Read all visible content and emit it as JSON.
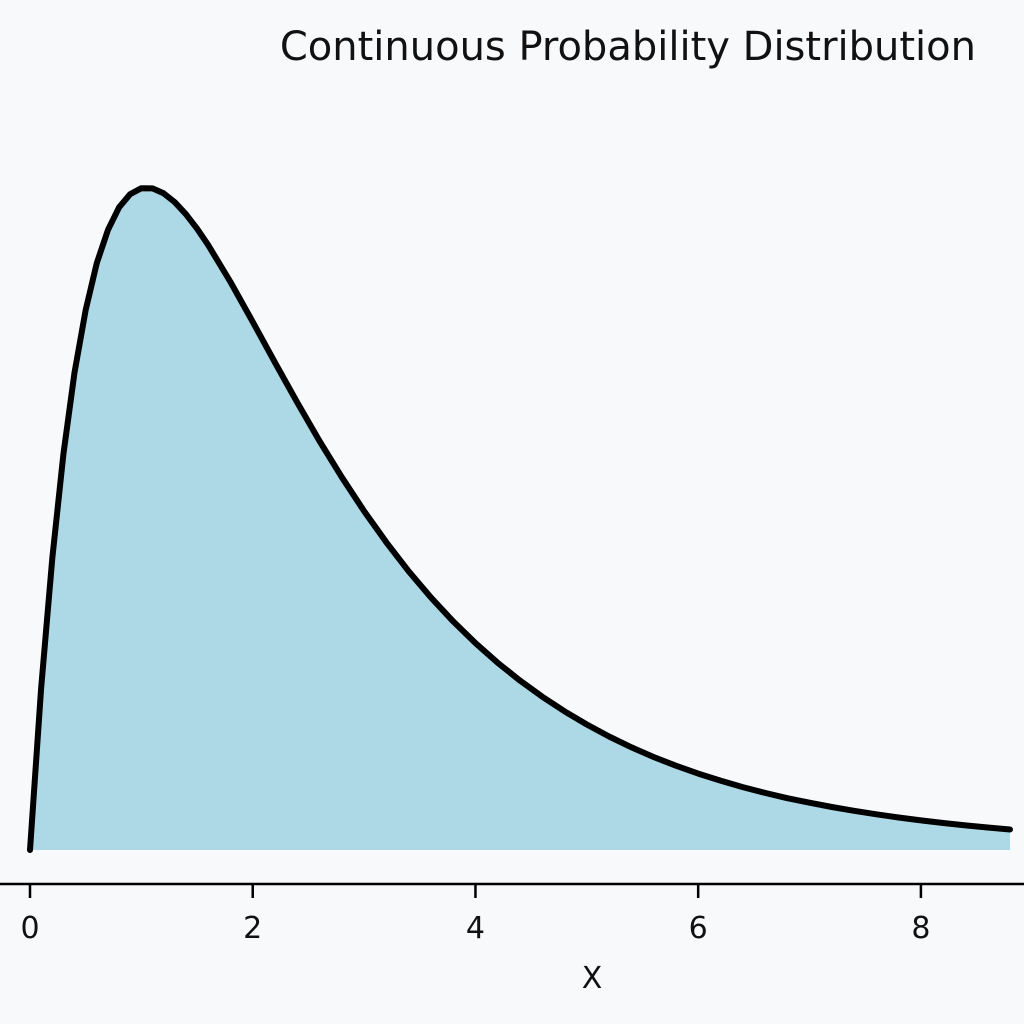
{
  "chart_data": {
    "type": "area",
    "title": "Continuous Probability Distribution",
    "xlabel": "X",
    "ylabel": "",
    "xlim": [
      0,
      8.8
    ],
    "ylim": [
      0,
      0.37
    ],
    "x_ticks": [
      0,
      2,
      4,
      6,
      8
    ],
    "x_tick_labels": [
      "0",
      "2",
      "4",
      "6",
      "8"
    ],
    "grid": false,
    "legend": false,
    "colors": {
      "fill": "#add8e6",
      "line": "#000000",
      "background": "#f8f9fb",
      "axis": "#000000"
    },
    "series": [
      {
        "x": [
          0,
          0.1,
          0.2,
          0.3,
          0.4,
          0.5,
          0.6,
          0.7,
          0.8,
          0.9,
          1.0,
          1.1,
          1.2,
          1.3,
          1.4,
          1.5,
          1.6,
          1.8,
          2.0,
          2.2,
          2.4,
          2.6,
          2.8,
          3.0,
          3.2,
          3.4,
          3.6,
          3.8,
          4.0,
          4.2,
          4.4,
          4.6,
          4.8,
          5.0,
          5.2,
          5.4,
          5.6,
          5.8,
          6.0,
          6.2,
          6.4,
          6.6,
          6.8,
          7.0,
          7.2,
          7.4,
          7.6,
          7.8,
          8.0,
          8.2,
          8.4,
          8.6,
          8.8
        ],
        "y": [
          0,
          0.0819,
          0.1481,
          0.2009,
          0.2423,
          0.2741,
          0.2979,
          0.3148,
          0.3262,
          0.3329,
          0.3359,
          0.3358,
          0.3333,
          0.3288,
          0.3227,
          0.3154,
          0.307,
          0.2883,
          0.2681,
          0.2474,
          0.2271,
          0.2076,
          0.1892,
          0.172,
          0.1561,
          0.1415,
          0.1282,
          0.116,
          0.105,
          0.095,
          0.086,
          0.0778,
          0.0704,
          0.0637,
          0.0576,
          0.0521,
          0.0472,
          0.0428,
          0.0388,
          0.0352,
          0.0319,
          0.029,
          0.0263,
          0.024,
          0.0218,
          0.0199,
          0.0181,
          0.0165,
          0.015,
          0.0137,
          0.0125,
          0.0114,
          0.0104
        ]
      }
    ]
  }
}
